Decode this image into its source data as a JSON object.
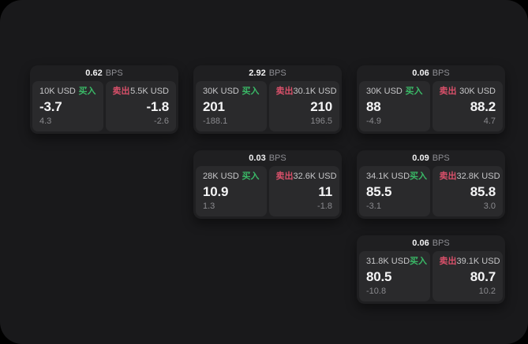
{
  "labels": {
    "buy": "买入",
    "sell": "卖出",
    "bps": "BPS"
  },
  "colors": {
    "page_bg": "#000000",
    "panel_bg": "#19191b",
    "card_bg": "#1f1f21",
    "tile_bg": "#2a2a2c",
    "buy_green": "#3ab967",
    "sell_red": "#d9506a",
    "price_white": "#f5f5f6",
    "muted_gray": "#8a8a8e",
    "size_label_gray": "#c7c7c9"
  },
  "cards": [
    {
      "bps": "0.62",
      "buy": {
        "size": "10K USD",
        "price": "-3.7",
        "delta": "4.3"
      },
      "sell": {
        "size": "5.5K USD",
        "price": "-1.8",
        "delta": "-2.6"
      }
    },
    {
      "bps": "2.92",
      "buy": {
        "size": "30K USD",
        "price": "201",
        "delta": "-188.1"
      },
      "sell": {
        "size": "30.1K USD",
        "price": "210",
        "delta": "196.5"
      }
    },
    {
      "bps": "0.06",
      "buy": {
        "size": "30K USD",
        "price": "88",
        "delta": "-4.9"
      },
      "sell": {
        "size": "30K USD",
        "price": "88.2",
        "delta": "4.7"
      }
    },
    {
      "bps": "0.03",
      "buy": {
        "size": "28K USD",
        "price": "10.9",
        "delta": "1.3"
      },
      "sell": {
        "size": "32.6K USD",
        "price": "11",
        "delta": "-1.8"
      }
    },
    {
      "bps": "0.09",
      "buy": {
        "size": "34.1K USD",
        "price": "85.5",
        "delta": "-3.1"
      },
      "sell": {
        "size": "32.8K USD",
        "price": "85.8",
        "delta": "3.0"
      }
    },
    {
      "bps": "0.06",
      "buy": {
        "size": "31.8K USD",
        "price": "80.5",
        "delta": "-10.8"
      },
      "sell": {
        "size": "39.1K USD",
        "price": "80.7",
        "delta": "10.2"
      }
    }
  ]
}
